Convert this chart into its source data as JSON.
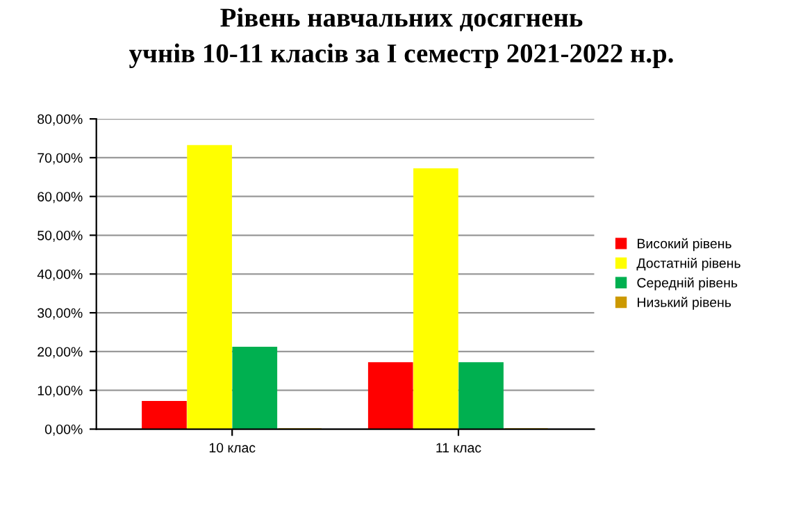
{
  "chart_data": {
    "type": "bar",
    "title": "Рівень навчальних досягнень\nучнів 10-11 класів за І семестр 2021-2022 н.р.",
    "categories": [
      "10 клас",
      "11 клас"
    ],
    "series": [
      {
        "name": "Високий рівень",
        "color": "#ff0000",
        "values": [
          7,
          17
        ]
      },
      {
        "name": "Достатній рівень",
        "color": "#ffff00",
        "values": [
          73,
          67
        ]
      },
      {
        "name": "Середній рівень",
        "color": "#00b050",
        "values": [
          21,
          17
        ]
      },
      {
        "name": "Низький рівень",
        "color": "#cc9900",
        "values": [
          0,
          0
        ]
      }
    ],
    "ylim": [
      0,
      80
    ],
    "yticks": [
      {
        "value": 0,
        "label": "0,00%"
      },
      {
        "value": 10,
        "label": "10,00%"
      },
      {
        "value": 20,
        "label": "20,00%"
      },
      {
        "value": 30,
        "label": "30,00%"
      },
      {
        "value": 40,
        "label": "40,00%"
      },
      {
        "value": 50,
        "label": "50,00%"
      },
      {
        "value": 60,
        "label": "60,00%"
      },
      {
        "value": 70,
        "label": "70,00%"
      },
      {
        "value": 80,
        "label": "80,00%"
      }
    ],
    "grid": "y",
    "legend": "right"
  }
}
